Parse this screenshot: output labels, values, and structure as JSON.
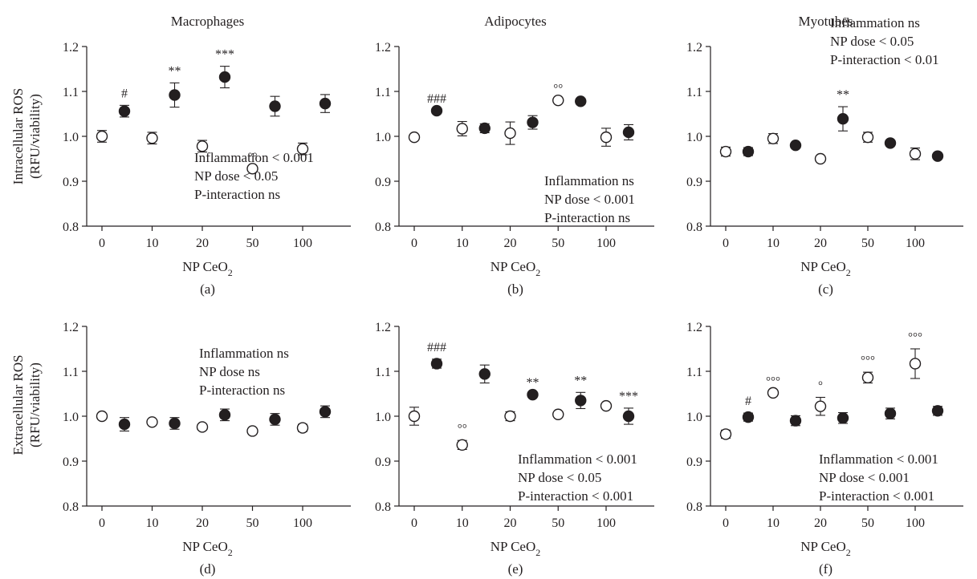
{
  "ylabels": {
    "row1": [
      "Intracellular ROS",
      "(RFU/viability)"
    ],
    "row2": [
      "Extracellular ROS",
      "(RFU/viability)"
    ]
  },
  "colors": {
    "ink": "#231f20",
    "open_fill": "#ffffff",
    "closed_fill": "#231f20"
  },
  "chart_data": [
    {
      "type": "scatter",
      "panel_label": "(a)",
      "title": "Macrophages",
      "xlabel": "NP CeO",
      "xlabel_sub": "2",
      "categories": [
        "0",
        "10",
        "20",
        "50",
        "100"
      ],
      "ylim": [
        0.8,
        1.2
      ],
      "yticks": [
        "0.8",
        "0.9",
        "1.0",
        "1.1",
        "1.2"
      ],
      "grid": false,
      "series": [
        {
          "marker": "open",
          "values": [
            1.0,
            0.996,
            0.978,
            0.928,
            0.972
          ],
          "err": [
            0.013,
            0.013,
            0.013,
            0.0,
            0.013
          ],
          "annotations": [
            "",
            "",
            "",
            "°°",
            ""
          ]
        },
        {
          "marker": "filled",
          "values": [
            1.056,
            1.092,
            1.132,
            1.067,
            1.073
          ],
          "err": [
            0.013,
            0.027,
            0.024,
            0.022,
            0.02
          ],
          "annotations": [
            "#",
            "**",
            "***",
            "",
            ""
          ]
        }
      ],
      "stats": [
        "Inflammation < 0.001",
        "NP dose < 0.05",
        "P-interaction ns"
      ]
    },
    {
      "type": "scatter",
      "panel_label": "(b)",
      "title": "Adipocytes",
      "xlabel": "NP CeO",
      "xlabel_sub": "2",
      "categories": [
        "0",
        "10",
        "20",
        "50",
        "100"
      ],
      "ylim": [
        0.8,
        1.2
      ],
      "yticks": [
        "0.8",
        "0.9",
        "1.0",
        "1.1",
        "1.2"
      ],
      "grid": false,
      "series": [
        {
          "marker": "open",
          "values": [
            0.998,
            1.017,
            1.007,
            1.08,
            0.998
          ],
          "err": [
            0.0,
            0.016,
            0.025,
            0.0,
            0.02
          ],
          "annotations": [
            "",
            "",
            "",
            "°°",
            ""
          ]
        },
        {
          "marker": "filled",
          "values": [
            1.057,
            1.018,
            1.031,
            1.078,
            1.009
          ],
          "err": [
            0.0,
            0.01,
            0.015,
            0.0,
            0.017
          ],
          "annotations": [
            "###",
            "",
            "",
            "",
            ""
          ]
        }
      ],
      "stats": [
        "Inflammation ns",
        "NP dose < 0.001",
        "P-interaction ns"
      ]
    },
    {
      "type": "scatter",
      "panel_label": "(c)",
      "title": "Myotubes",
      "xlabel": "NP CeO",
      "xlabel_sub": "2",
      "categories": [
        "0",
        "10",
        "20",
        "50",
        "100"
      ],
      "ylim": [
        0.8,
        1.2
      ],
      "yticks": [
        "0.8",
        "0.9",
        "1.0",
        "1.1",
        "1.2"
      ],
      "grid": false,
      "series": [
        {
          "marker": "open",
          "values": [
            0.966,
            0.995,
            0.95,
            0.998,
            0.961
          ],
          "err": [
            0.01,
            0.011,
            0.0,
            0.011,
            0.013
          ],
          "annotations": [
            "",
            "",
            "",
            "",
            ""
          ]
        },
        {
          "marker": "filled",
          "values": [
            0.966,
            0.98,
            1.039,
            0.985,
            0.956
          ],
          "err": [
            0.009,
            0.0,
            0.027,
            0.0,
            0.0
          ],
          "annotations": [
            "",
            "",
            "**",
            "",
            ""
          ]
        }
      ],
      "stats": [
        "Inflammation ns",
        "NP dose < 0.05",
        "P-interaction < 0.01"
      ]
    },
    {
      "type": "scatter",
      "panel_label": "(d)",
      "title": "",
      "xlabel": "NP CeO",
      "xlabel_sub": "2",
      "categories": [
        "0",
        "10",
        "20",
        "50",
        "100"
      ],
      "ylim": [
        0.8,
        1.2
      ],
      "yticks": [
        "0.8",
        "0.9",
        "1.0",
        "1.1",
        "1.2"
      ],
      "grid": false,
      "series": [
        {
          "marker": "open",
          "values": [
            1.0,
            0.987,
            0.976,
            0.967,
            0.974
          ],
          "err": [
            0.0,
            0.0,
            0.0,
            0.0,
            0.008
          ],
          "annotations": [
            "",
            "",
            "",
            "",
            ""
          ]
        },
        {
          "marker": "filled",
          "values": [
            0.982,
            0.984,
            1.003,
            0.993,
            1.01
          ],
          "err": [
            0.015,
            0.013,
            0.013,
            0.013,
            0.013
          ],
          "annotations": [
            "",
            "",
            "",
            "",
            ""
          ]
        }
      ],
      "stats": [
        "Inflammation ns",
        "NP dose ns",
        "P-interaction ns"
      ]
    },
    {
      "type": "scatter",
      "panel_label": "(e)",
      "title": "",
      "xlabel": "NP CeO",
      "xlabel_sub": "2",
      "categories": [
        "0",
        "10",
        "20",
        "50",
        "100"
      ],
      "ylim": [
        0.8,
        1.2
      ],
      "yticks": [
        "0.8",
        "0.9",
        "1.0",
        "1.1",
        "1.2"
      ],
      "grid": false,
      "series": [
        {
          "marker": "open",
          "values": [
            1.0,
            0.936,
            1.0,
            1.004,
            1.023
          ],
          "err": [
            0.02,
            0.01,
            0.01,
            0.0,
            0.0
          ],
          "annotations": [
            "",
            "°°",
            "",
            "",
            ""
          ]
        },
        {
          "marker": "filled",
          "values": [
            1.117,
            1.094,
            1.048,
            1.035,
            1.0
          ],
          "err": [
            0.01,
            0.02,
            0.0,
            0.018,
            0.018
          ],
          "annotations": [
            "###",
            "",
            "**",
            "**",
            "***"
          ]
        }
      ],
      "stats": [
        "Inflammation < 0.001",
        "NP dose < 0.05",
        "P-interaction < 0.001"
      ]
    },
    {
      "type": "scatter",
      "panel_label": "(f)",
      "title": "",
      "xlabel": "NP CeO",
      "xlabel_sub": "2",
      "categories": [
        "0",
        "10",
        "20",
        "50",
        "100"
      ],
      "ylim": [
        0.8,
        1.2
      ],
      "yticks": [
        "0.8",
        "0.9",
        "1.0",
        "1.1",
        "1.2"
      ],
      "grid": false,
      "series": [
        {
          "marker": "open",
          "values": [
            0.96,
            1.052,
            1.022,
            1.086,
            1.117
          ],
          "err": [
            0.009,
            0.0,
            0.02,
            0.012,
            0.033
          ],
          "annotations": [
            "",
            "°°°",
            "°",
            "°°°",
            "°°°"
          ]
        },
        {
          "marker": "filled",
          "values": [
            0.998,
            0.99,
            0.996,
            1.006,
            1.012
          ],
          "err": [
            0.009,
            0.011,
            0.012,
            0.012,
            0.01
          ],
          "annotations": [
            "#",
            "",
            "",
            "",
            ""
          ]
        }
      ],
      "stats": [
        "Inflammation < 0.001",
        "NP dose < 0.001",
        "P-interaction < 0.001"
      ]
    }
  ]
}
